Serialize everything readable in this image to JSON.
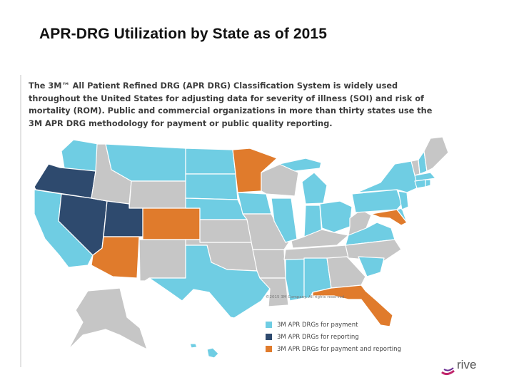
{
  "slide": {
    "title": "APR-DRG Utilization by State as of 2015"
  },
  "intro_lines": [
    "The 3M™ All Patient Refined DRG (APR DRG) Classification System is widely used",
    "throughout the United States for adjusting data for severity of illness (SOI) and risk of",
    "mortality (ROM). Public and commercial organizations in more than thirty states use the",
    "3M APR DRG methodology for payment or public quality reporting."
  ],
  "map": {
    "copyright": "©2015 3M Company. All rights reserved.",
    "colors": {
      "payment": "#6fcde3",
      "reporting": "#2e4a6e",
      "both": "#e07b2c",
      "none": "#c6c6c6",
      "border": "#ffffff"
    },
    "legend": [
      {
        "key": "payment",
        "label": "3M APR DRGs for payment"
      },
      {
        "key": "reporting",
        "label": "3M APR DRGs for reporting"
      },
      {
        "key": "both",
        "label": "3M APR DRGs for payment and reporting"
      }
    ],
    "state_status": {
      "WA": "payment",
      "OR": "reporting",
      "CA": "payment",
      "NV": "reporting",
      "ID": "none",
      "MT": "payment",
      "WY": "none",
      "UT": "reporting",
      "AZ": "both",
      "CO": "both",
      "NM": "none",
      "ND": "payment",
      "SD": "payment",
      "NE": "payment",
      "KS": "none",
      "OK": "none",
      "TX": "payment",
      "MN": "both",
      "IA": "payment",
      "MO": "none",
      "AR": "none",
      "LA": "none",
      "WI": "none",
      "IL": "payment",
      "MS": "payment",
      "MI": "payment",
      "IN": "payment",
      "KY": "none",
      "TN": "none",
      "AL": "payment",
      "OH": "payment",
      "WV": "none",
      "VA": "payment",
      "NC": "none",
      "SC": "payment",
      "GA": "none",
      "FL": "both",
      "PA": "payment",
      "NY": "payment",
      "NJ": "payment",
      "MD": "both",
      "DE": "payment",
      "VT": "none",
      "NH": "payment",
      "MA": "payment",
      "CT": "payment",
      "RI": "payment",
      "ME": "none",
      "AK": "none",
      "HI": "payment"
    }
  },
  "logo": {
    "text": "rive",
    "icon": "brand-swoosh-icon"
  }
}
